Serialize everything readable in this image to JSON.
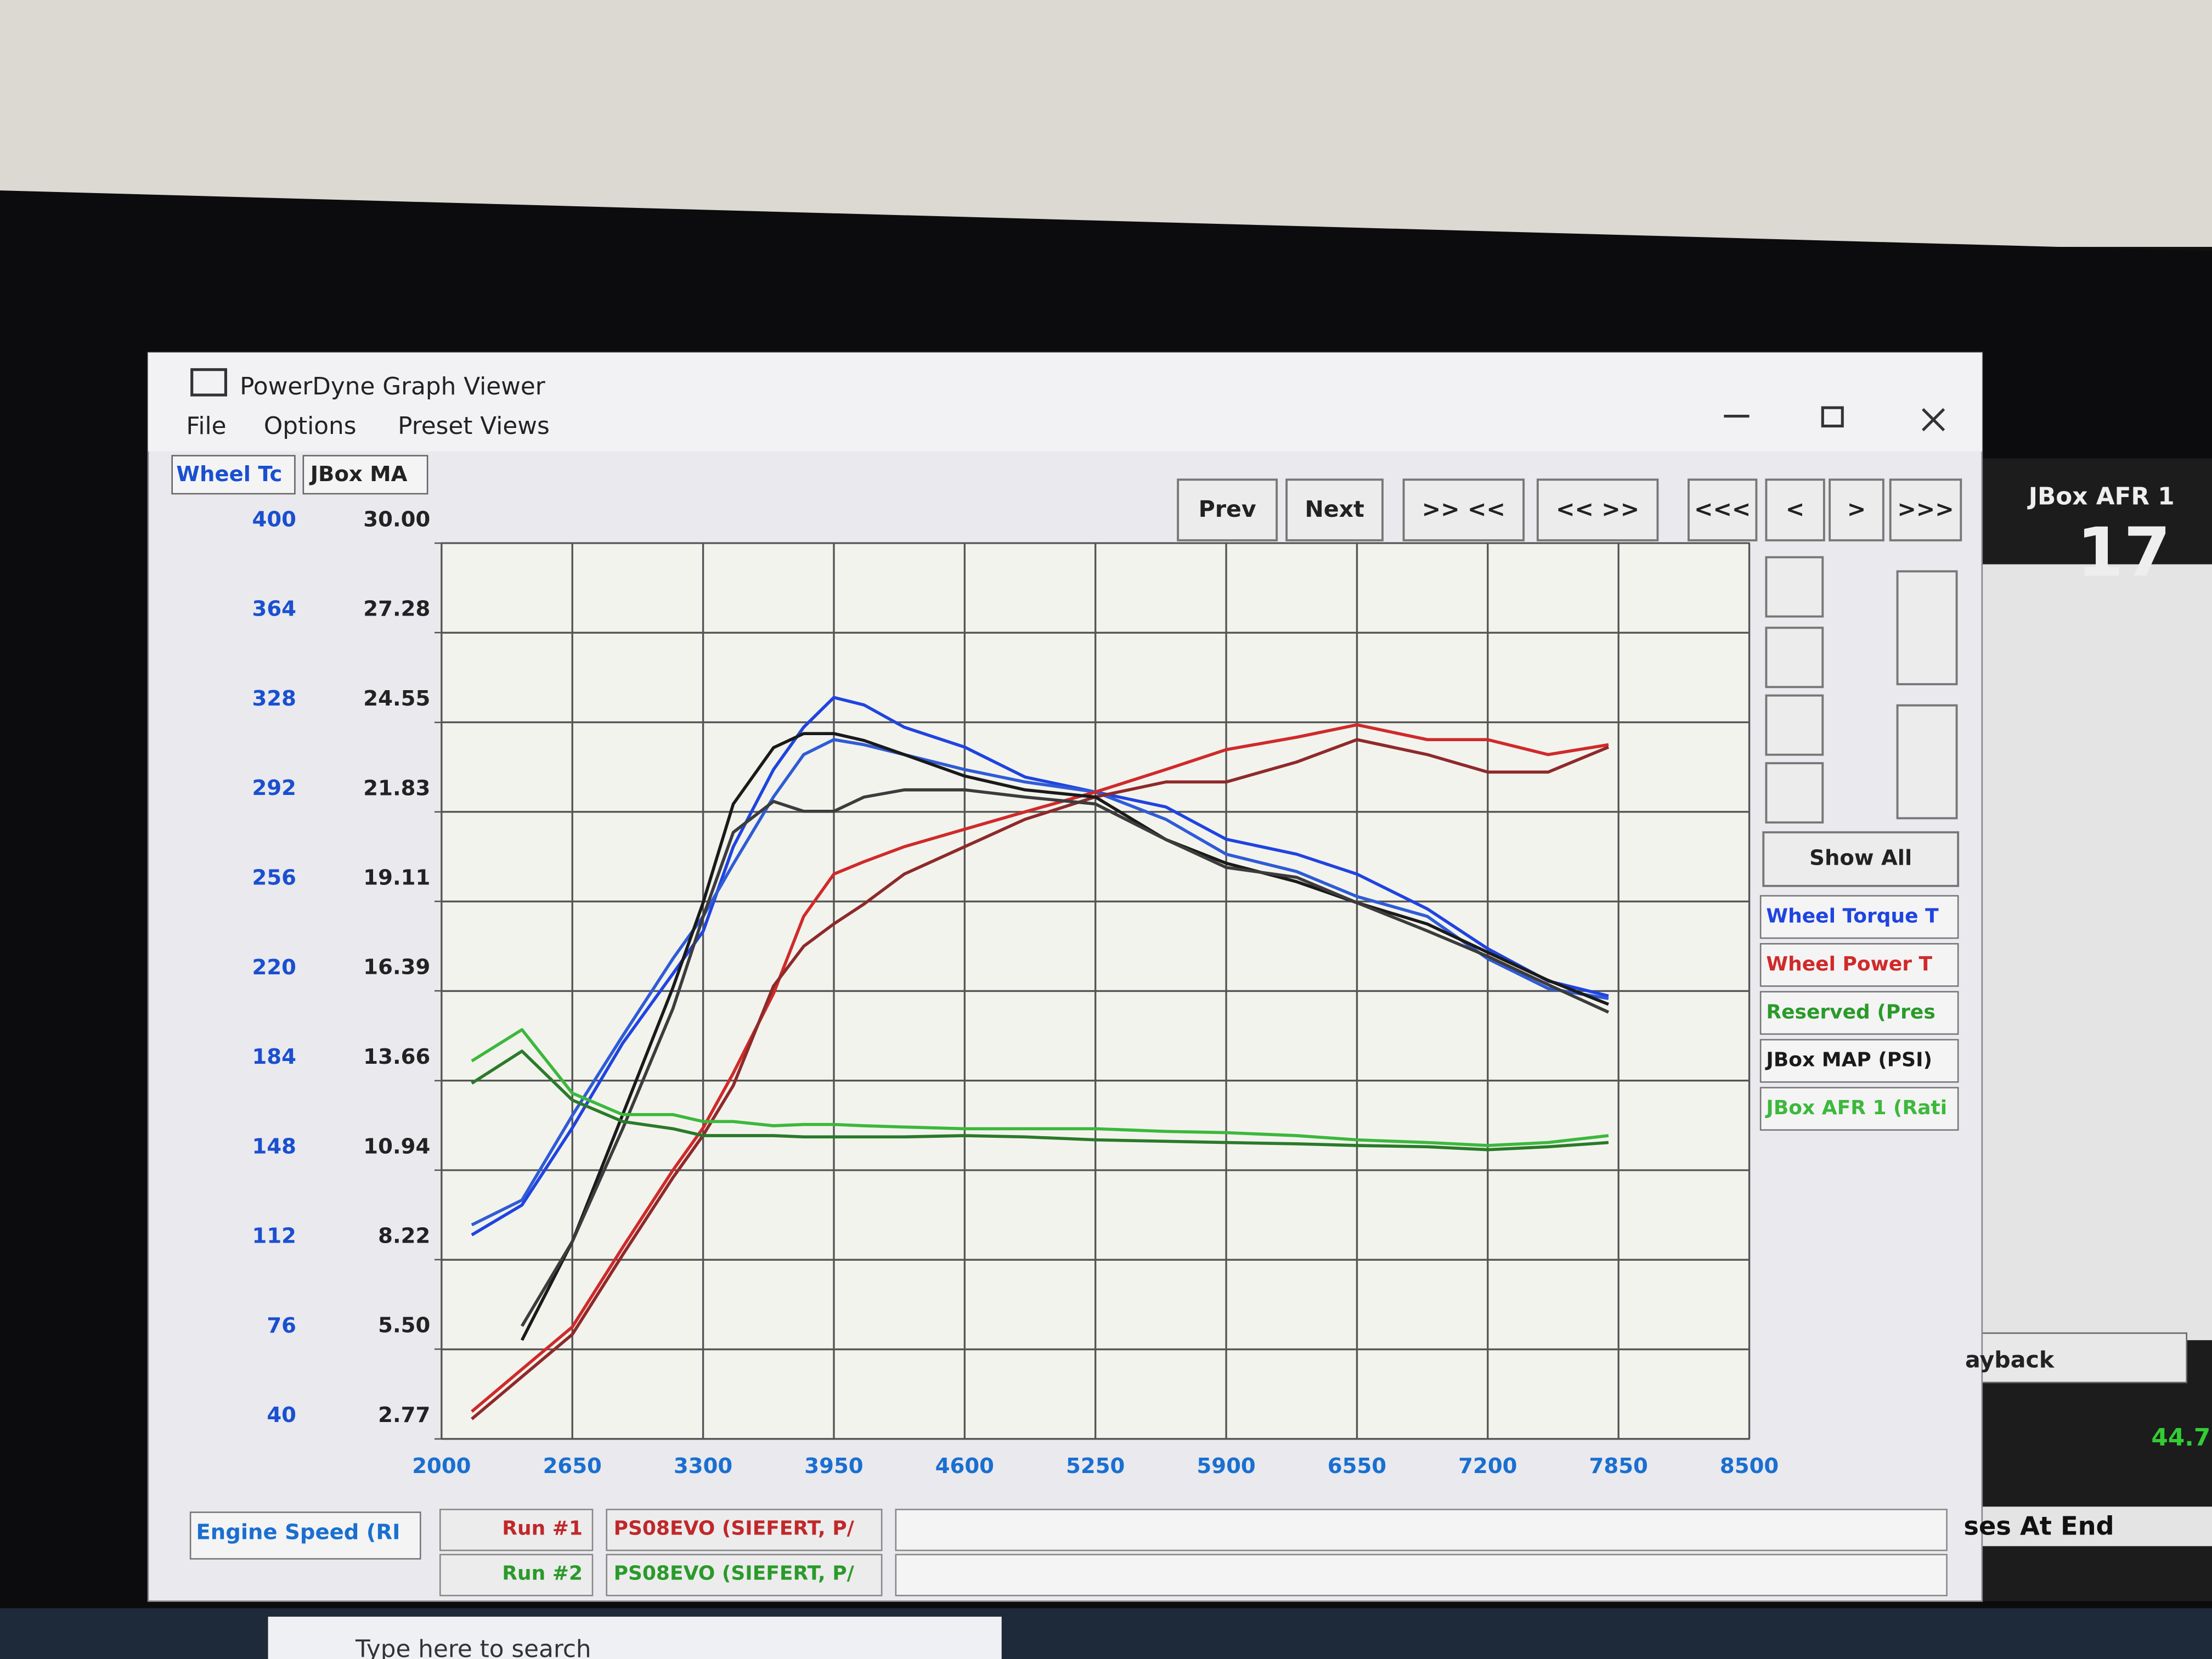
{
  "window": {
    "title": "PowerDyne Graph Viewer",
    "menu": [
      "File",
      "Options",
      "Preset Views"
    ]
  },
  "toolbar": [
    "Prev",
    "Next",
    ">> <<",
    "<< >>",
    "<<<",
    "<",
    ">",
    ">>>"
  ],
  "show_all": "Show All",
  "chart_data": {
    "type": "line",
    "x_label": "Engine Speed (RI",
    "y_label": "Wheel Tc",
    "y2_label": "JBox MA",
    "x": [
      2150,
      2400,
      2650,
      2900,
      3150,
      3300,
      3450,
      3650,
      3800,
      3950,
      4100,
      4300,
      4600,
      4900,
      5250,
      5600,
      5900,
      6250,
      6550,
      6900,
      7200,
      7500,
      7800
    ],
    "xlim": [
      2000,
      8500
    ],
    "xticks": [
      2000,
      2650,
      3300,
      3950,
      4600,
      5250,
      5900,
      6550,
      7200,
      7850,
      8500
    ],
    "ylim": [
      40,
      400
    ],
    "yticks": [
      40,
      76,
      112,
      148,
      184,
      220,
      256,
      292,
      328,
      364,
      400
    ],
    "y2lim": [
      2.77,
      30
    ],
    "y2ticks": [
      2.77,
      {
        "value": 5.5,
        "label": "5.50"
      },
      8.22,
      10.94,
      13.66,
      16.39,
      19.11,
      21.83,
      24.55,
      27.28,
      {
        "value": 30,
        "label": "30.00"
      }
    ],
    "grid": true,
    "series": [
      {
        "name": "Wheel Torque T",
        "colors": [
          "#1f44e0",
          "#2f5cd6"
        ],
        "axis": "y",
        "runs": [
          [
            122,
            134,
            165,
            199,
            227,
            244,
            278,
            309,
            326,
            338,
            335,
            326,
            318,
            306,
            300,
            294,
            281,
            275,
            267,
            253,
            237,
            224,
            218
          ],
          [
            126,
            136,
            170,
            202,
            233,
            250,
            271,
            298,
            315,
            321,
            319,
            315,
            309,
            304,
            300,
            289,
            275,
            268,
            258,
            250,
            233,
            221,
            217
          ]
        ]
      },
      {
        "name": "Wheel Power T",
        "colors": [
          "#d02a2a",
          "#8e2a2a"
        ],
        "axis": "y",
        "runs": [
          [
            51,
            68,
            85,
            117,
            148,
            165,
            187,
            219,
            250,
            267,
            272,
            278,
            285,
            292,
            300,
            309,
            317,
            322,
            327,
            321,
            321,
            315,
            319
          ],
          [
            48,
            65,
            82,
            114,
            145,
            162,
            182,
            222,
            238,
            247,
            255,
            267,
            278,
            289,
            298,
            304,
            304,
            312,
            321,
            315,
            308,
            308,
            318
          ]
        ]
      },
      {
        "name": "Reserved (Pres",
        "colors": [
          "#2a9a2a"
        ],
        "axis": "y"
      },
      {
        "name": "JBox MAP (PSI)",
        "colors": [
          "#1a1a1a",
          "#3c3c3c"
        ],
        "axis": "y2",
        "runs": [
          [
            null,
            5.77,
            8.77,
            12.63,
            16.49,
            19.07,
            22.07,
            23.78,
            24.21,
            24.21,
            24.0,
            23.57,
            22.92,
            22.5,
            22.28,
            20.99,
            20.27,
            19.71,
            19.07,
            18.42,
            17.56,
            16.71,
            15.98
          ],
          [
            null,
            6.2,
            8.77,
            12.2,
            15.85,
            18.64,
            21.21,
            22.15,
            21.85,
            21.85,
            22.28,
            22.5,
            22.5,
            22.28,
            22.07,
            20.99,
            20.14,
            19.84,
            19.07,
            18.21,
            17.44,
            16.58,
            15.74
          ]
        ]
      },
      {
        "name": "JBox AFR 1 (Rati",
        "colors": [
          "#3cb83c",
          "#2a7a2a"
        ],
        "axis": "y2",
        "runs": [
          [
            14.26,
            15.21,
            13.28,
            12.63,
            12.63,
            12.42,
            12.42,
            12.29,
            12.33,
            12.33,
            12.29,
            12.25,
            12.2,
            12.2,
            12.2,
            12.12,
            12.08,
            11.99,
            11.86,
            11.78,
            11.69,
            11.78,
            11.99
          ],
          [
            13.58,
            14.56,
            13.07,
            12.42,
            12.2,
            11.99,
            11.99,
            11.99,
            11.95,
            11.95,
            11.95,
            11.95,
            11.99,
            11.95,
            11.86,
            11.82,
            11.78,
            11.74,
            11.69,
            11.65,
            11.56,
            11.65,
            11.78
          ]
        ]
      }
    ]
  },
  "runs": [
    {
      "label": "Run #1",
      "name": "PS08EVO (SIEFERT, P/"
    },
    {
      "label": "Run #2",
      "name": "PS08EVO (SIEFERT, P/"
    }
  ],
  "background_window": {
    "title": "JBox AFR 1",
    "value": "17",
    "playback": "ayback",
    "status": "ses At End",
    "reading": "44.7"
  },
  "taskbar": {
    "search": "Type here to search"
  }
}
